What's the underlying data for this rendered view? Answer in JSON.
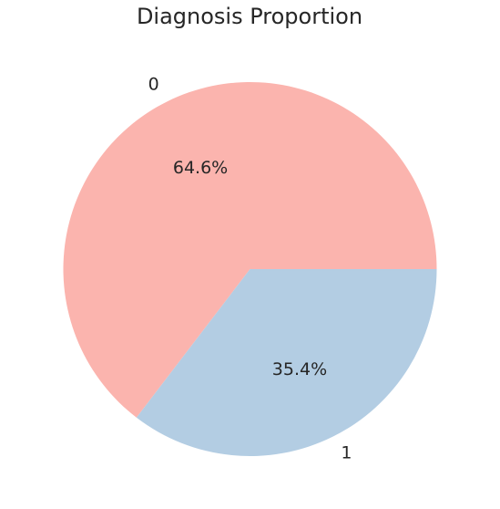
{
  "chart_data": {
    "type": "pie",
    "title": "Diagnosis Proportion",
    "categories": [
      "0",
      "1"
    ],
    "values": [
      64.6,
      35.4
    ],
    "value_labels": [
      "64.6%",
      "35.4%"
    ],
    "colors": [
      "#fbb4ae",
      "#b3cde3"
    ],
    "start_angle_deg": 0,
    "direction": "counterclockwise",
    "legend": "none"
  }
}
